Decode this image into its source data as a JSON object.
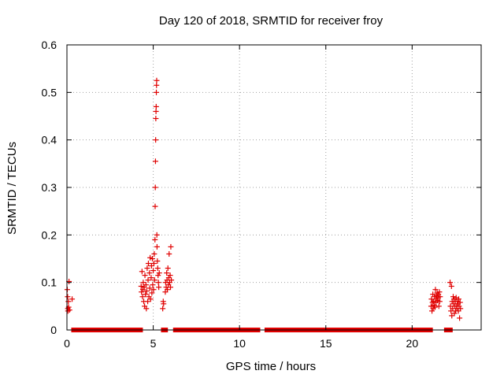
{
  "chart_data": {
    "type": "scatter",
    "title": "Day 120 of 2018, SRMTID for receiver froy",
    "xlabel": "GPS time / hours",
    "ylabel": "SRMTID / TECUs",
    "xlim": [
      0,
      24
    ],
    "ylim": [
      0,
      0.6
    ],
    "xticks": [
      0,
      5,
      10,
      15,
      20
    ],
    "xtick_labels": [
      "0",
      "5",
      "10",
      "15",
      "20"
    ],
    "yticks": [
      0,
      0.1,
      0.2,
      0.3,
      0.4,
      0.5,
      0.6
    ],
    "ytick_labels": [
      "0",
      "0.1",
      "0.2",
      "0.3",
      "0.4",
      "0.5",
      "0.6"
    ],
    "grid": true,
    "marker": "+",
    "color": "#e00000",
    "series": [
      {
        "name": "SRMTID",
        "points": [
          [
            0.02,
            0.085
          ],
          [
            0.04,
            0.07
          ],
          [
            0.05,
            0.045
          ],
          [
            0.06,
            0.04
          ],
          [
            0.08,
            0.06
          ],
          [
            0.1,
            0.048
          ],
          [
            0.12,
            0.102
          ],
          [
            0.15,
            0.042
          ],
          [
            0.3,
            0.065
          ],
          [
            4.3,
            0.092
          ],
          [
            4.32,
            0.08
          ],
          [
            4.35,
            0.123
          ],
          [
            4.38,
            0.07
          ],
          [
            4.4,
            0.085
          ],
          [
            4.42,
            0.1
          ],
          [
            4.45,
            0.06
          ],
          [
            4.48,
            0.09
          ],
          [
            4.5,
            0.05
          ],
          [
            4.52,
            0.115
          ],
          [
            4.55,
            0.075
          ],
          [
            4.58,
            0.095
          ],
          [
            4.6,
            0.045
          ],
          [
            4.62,
            0.082
          ],
          [
            4.65,
            0.13
          ],
          [
            4.68,
            0.06
          ],
          [
            4.7,
            0.105
          ],
          [
            4.72,
            0.14
          ],
          [
            4.75,
            0.07
          ],
          [
            4.78,
            0.12
          ],
          [
            4.8,
            0.088
          ],
          [
            4.82,
            0.152
          ],
          [
            4.85,
            0.065
          ],
          [
            4.88,
            0.11
          ],
          [
            4.9,
            0.135
          ],
          [
            4.92,
            0.078
          ],
          [
            4.95,
            0.15
          ],
          [
            4.97,
            0.095
          ],
          [
            5.0,
            0.125
          ],
          [
            5.02,
            0.085
          ],
          [
            5.04,
            0.14
          ],
          [
            5.06,
            0.16
          ],
          [
            5.08,
            0.105
          ],
          [
            5.1,
            0.19
          ],
          [
            5.11,
            0.26
          ],
          [
            5.12,
            0.3
          ],
          [
            5.13,
            0.355
          ],
          [
            5.14,
            0.4
          ],
          [
            5.15,
            0.445
          ],
          [
            5.16,
            0.46
          ],
          [
            5.17,
            0.47
          ],
          [
            5.18,
            0.5
          ],
          [
            5.19,
            0.515
          ],
          [
            5.2,
            0.525
          ],
          [
            5.21,
            0.2
          ],
          [
            5.22,
            0.175
          ],
          [
            5.24,
            0.145
          ],
          [
            5.26,
            0.13
          ],
          [
            5.28,
            0.115
          ],
          [
            5.3,
            0.1
          ],
          [
            5.32,
            0.09
          ],
          [
            5.35,
            0.12
          ],
          [
            5.55,
            0.045
          ],
          [
            5.58,
            0.06
          ],
          [
            5.6,
            0.055
          ],
          [
            5.7,
            0.08
          ],
          [
            5.72,
            0.1
          ],
          [
            5.75,
            0.09
          ],
          [
            5.78,
            0.12
          ],
          [
            5.8,
            0.105
          ],
          [
            5.82,
            0.085
          ],
          [
            5.85,
            0.13
          ],
          [
            5.88,
            0.095
          ],
          [
            5.9,
            0.11
          ],
          [
            5.92,
            0.16
          ],
          [
            5.95,
            0.1
          ],
          [
            5.98,
            0.115
          ],
          [
            6.0,
            0.09
          ],
          [
            6.02,
            0.175
          ],
          [
            6.05,
            0.105
          ],
          [
            21.1,
            0.05
          ],
          [
            21.12,
            0.065
          ],
          [
            21.15,
            0.04
          ],
          [
            21.18,
            0.058
          ],
          [
            21.2,
            0.075
          ],
          [
            21.22,
            0.045
          ],
          [
            21.25,
            0.06
          ],
          [
            21.28,
            0.052
          ],
          [
            21.3,
            0.07
          ],
          [
            21.32,
            0.048
          ],
          [
            21.35,
            0.085
          ],
          [
            21.38,
            0.058
          ],
          [
            21.4,
            0.065
          ],
          [
            21.42,
            0.072
          ],
          [
            21.45,
            0.078
          ],
          [
            21.48,
            0.062
          ],
          [
            21.5,
            0.068
          ],
          [
            21.52,
            0.075
          ],
          [
            21.55,
            0.05
          ],
          [
            21.58,
            0.08
          ],
          [
            21.6,
            0.06
          ],
          [
            21.62,
            0.07
          ],
          [
            22.2,
            0.1
          ],
          [
            22.22,
            0.05
          ],
          [
            22.25,
            0.04
          ],
          [
            22.28,
            0.092
          ],
          [
            22.3,
            0.03
          ],
          [
            22.32,
            0.06
          ],
          [
            22.35,
            0.045
          ],
          [
            22.38,
            0.07
          ],
          [
            22.4,
            0.055
          ],
          [
            22.42,
            0.065
          ],
          [
            22.45,
            0.035
          ],
          [
            22.48,
            0.05
          ],
          [
            22.5,
            0.06
          ],
          [
            22.52,
            0.04
          ],
          [
            22.55,
            0.068
          ],
          [
            22.58,
            0.05
          ],
          [
            22.6,
            0.045
          ],
          [
            22.62,
            0.06
          ],
          [
            22.65,
            0.055
          ],
          [
            22.68,
            0.04
          ],
          [
            22.7,
            0.065
          ],
          [
            22.72,
            0.05
          ],
          [
            22.75,
            0.025
          ],
          [
            22.78,
            0.058
          ],
          [
            22.8,
            0.045
          ]
        ],
        "baseline_zero_segments": [
          [
            0.25,
            4.4
          ],
          [
            5.45,
            5.85
          ],
          [
            6.15,
            11.2
          ],
          [
            11.45,
            21.2
          ],
          [
            21.85,
            22.35
          ]
        ]
      }
    ]
  }
}
